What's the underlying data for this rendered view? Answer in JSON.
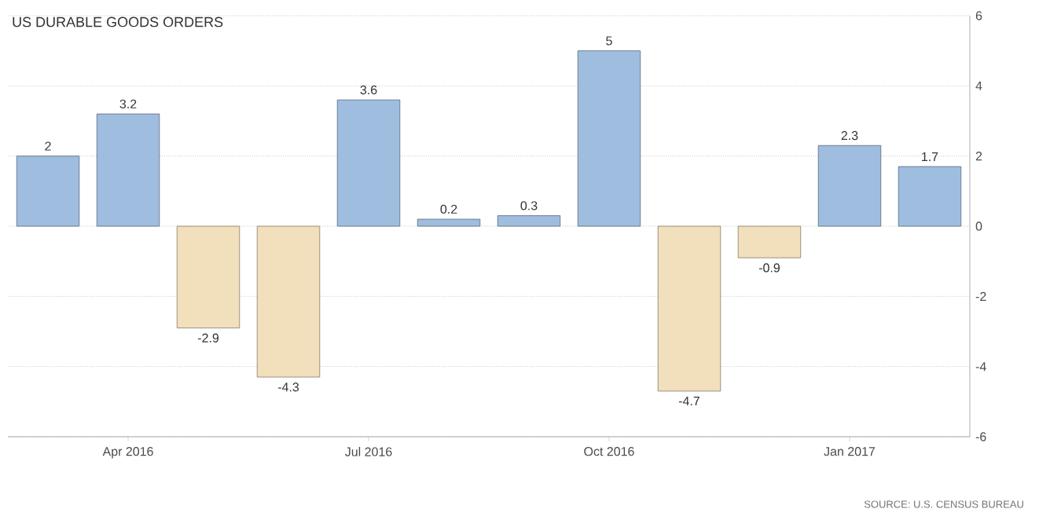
{
  "chart_data": {
    "type": "bar",
    "title": "US DURABLE GOODS ORDERS",
    "categories": [
      null,
      "Apr 2016",
      null,
      null,
      "Jul 2016",
      null,
      null,
      "Oct 2016",
      null,
      null,
      "Jan 2017",
      null
    ],
    "values": [
      2,
      3.2,
      -2.9,
      -4.3,
      3.6,
      0.2,
      0.3,
      5,
      -4.7,
      -0.9,
      2.3,
      1.7
    ],
    "colors": [
      "#9fbddf",
      "#9fbddf",
      "#f2dfbb",
      "#f2dfbb",
      "#9fbddf",
      "#9fbddf",
      "#9fbddf",
      "#9fbddf",
      "#f2dfbb",
      "#f2dfbb",
      "#9fbddf",
      "#9fbddf"
    ],
    "ylim": [
      -6,
      6
    ],
    "yticks": [
      -6,
      -4,
      -2,
      0,
      2,
      4,
      6
    ],
    "grid": "y",
    "data_labels": true,
    "annotations": [
      "SOURCE: U.S. CENSUS BUREAU"
    ]
  }
}
